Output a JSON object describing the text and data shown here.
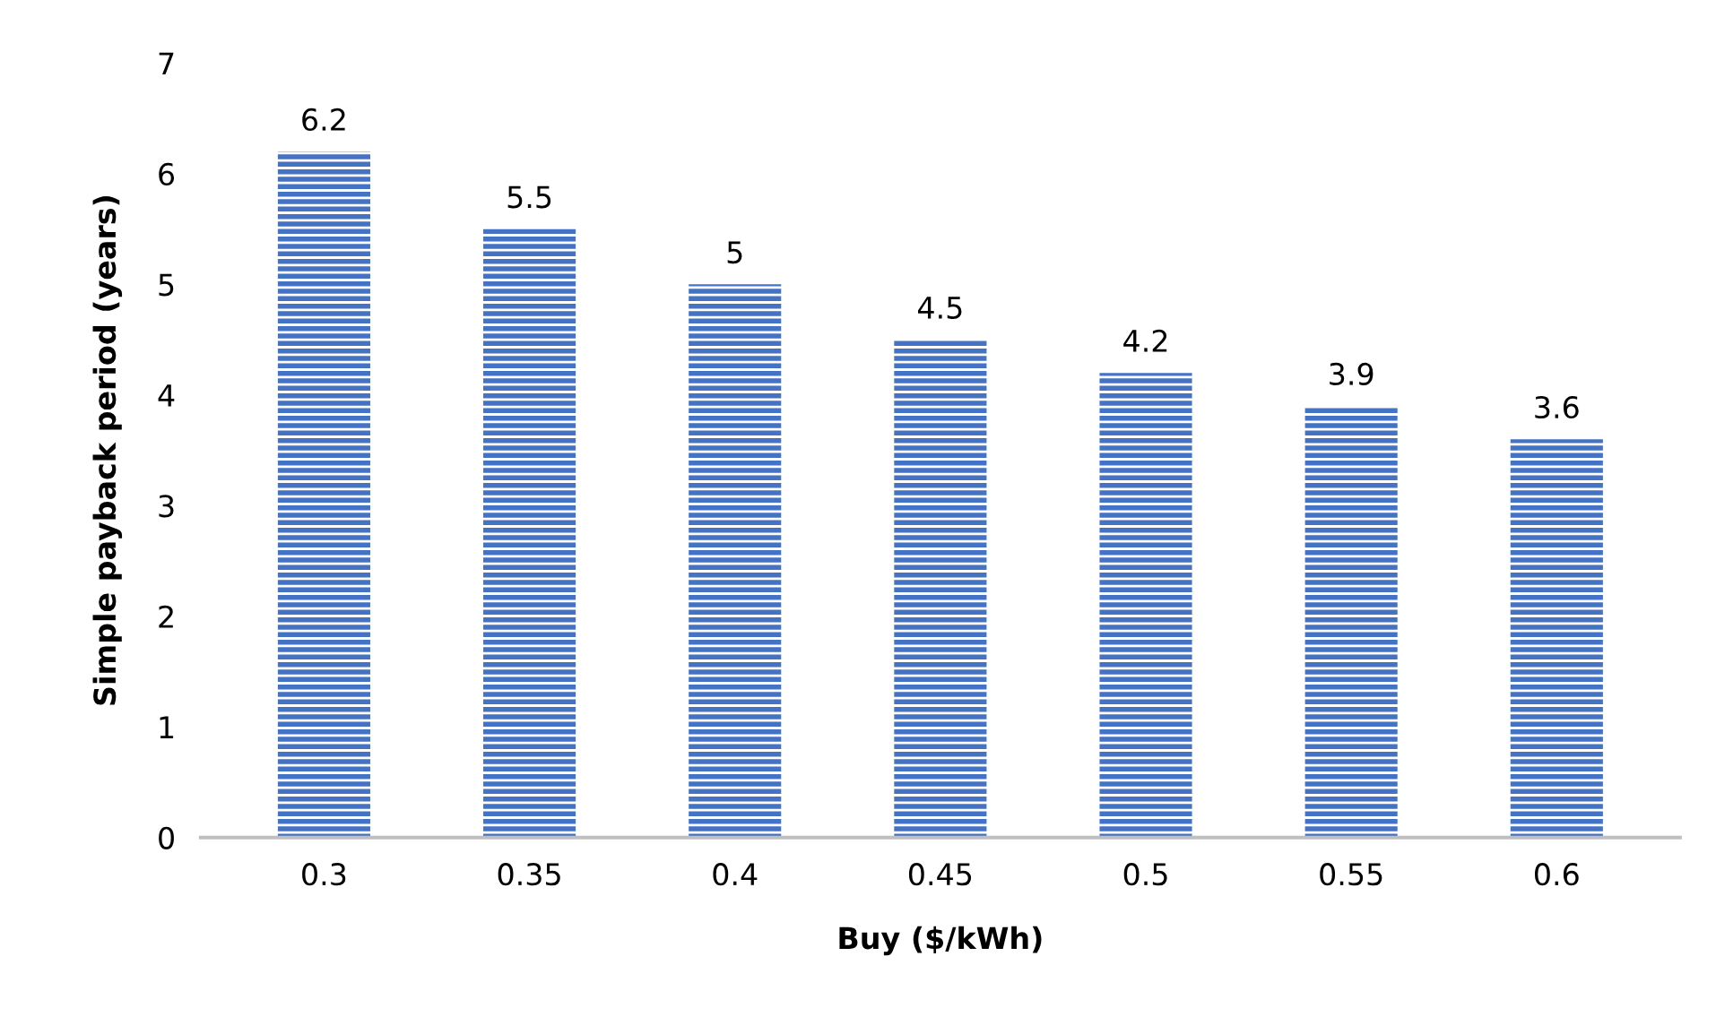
{
  "chart_data": {
    "type": "bar",
    "xlabel": "Buy ($/kWh)",
    "ylabel": "Simple payback period (years)",
    "categories": [
      "0.3",
      "0.35",
      "0.4",
      "0.45",
      "0.5",
      "0.55",
      "0.6"
    ],
    "values": [
      6.2,
      5.5,
      5,
      4.5,
      4.2,
      3.9,
      3.6
    ],
    "color": "#4472c4",
    "ylim": [
      0,
      7
    ],
    "yticks": [
      0,
      1,
      2,
      3,
      4,
      5,
      6,
      7
    ],
    "grid": false,
    "data_labels": true
  }
}
